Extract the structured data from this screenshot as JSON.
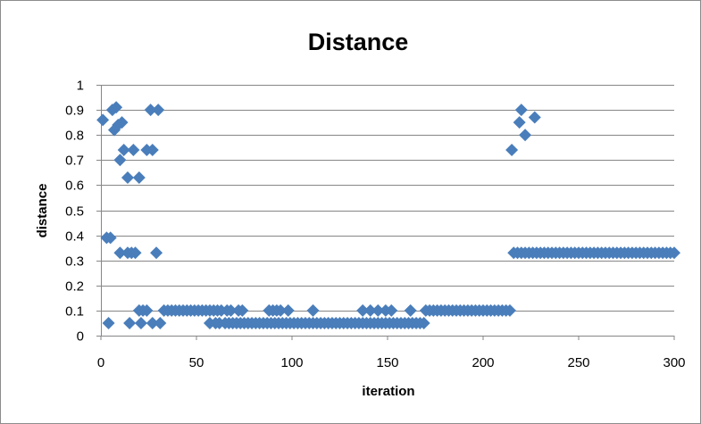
{
  "chart_data": {
    "type": "scatter",
    "title": "Distance",
    "xlabel": "iteration",
    "ylabel": "distance",
    "xlim": [
      0,
      300
    ],
    "ylim": [
      0,
      1
    ],
    "x_ticks": [
      "0",
      "50",
      "100",
      "150",
      "200",
      "250",
      "300"
    ],
    "y_ticks": [
      "0",
      "0.1",
      "0.2",
      "0.3",
      "0.4",
      "0.5",
      "0.6",
      "0.7",
      "0.8",
      "0.9",
      "1"
    ],
    "grid": "horizontal",
    "legend": "none",
    "marker": "diamond",
    "color": "#4a7ebb",
    "series": [
      {
        "points": [
          [
            1,
            0.86
          ],
          [
            3,
            0.39
          ],
          [
            4,
            0.05
          ],
          [
            5,
            0.39
          ],
          [
            6,
            0.9
          ],
          [
            7,
            0.82
          ],
          [
            8,
            0.91
          ],
          [
            9,
            0.84
          ],
          [
            10,
            0.7
          ],
          [
            10,
            0.33
          ],
          [
            11,
            0.85
          ],
          [
            12,
            0.74
          ],
          [
            14,
            0.63
          ],
          [
            14,
            0.33
          ],
          [
            15,
            0.05
          ],
          [
            16,
            0.33
          ],
          [
            17,
            0.74
          ],
          [
            18,
            0.33
          ],
          [
            20,
            0.63
          ],
          [
            20,
            0.1
          ],
          [
            21,
            0.05
          ],
          [
            22,
            0.1
          ],
          [
            24,
            0.74
          ],
          [
            24,
            0.1
          ],
          [
            26,
            0.9
          ],
          [
            27,
            0.74
          ],
          [
            27,
            0.05
          ],
          [
            29,
            0.33
          ],
          [
            30,
            0.9
          ],
          [
            31,
            0.05
          ],
          [
            33,
            0.1
          ],
          [
            35,
            0.1
          ],
          [
            37,
            0.1
          ],
          [
            39,
            0.1
          ],
          [
            41,
            0.1
          ],
          [
            43,
            0.1
          ],
          [
            45,
            0.1
          ],
          [
            47,
            0.1
          ],
          [
            49,
            0.1
          ],
          [
            51,
            0.1
          ],
          [
            53,
            0.1
          ],
          [
            55,
            0.1
          ],
          [
            57,
            0.1
          ],
          [
            57,
            0.05
          ],
          [
            59,
            0.1
          ],
          [
            60,
            0.05
          ],
          [
            61,
            0.1
          ],
          [
            62,
            0.05
          ],
          [
            63,
            0.1
          ],
          [
            65,
            0.05
          ],
          [
            66,
            0.1
          ],
          [
            67,
            0.05
          ],
          [
            68,
            0.1
          ],
          [
            69,
            0.05
          ],
          [
            71,
            0.05
          ],
          [
            72,
            0.1
          ],
          [
            73,
            0.05
          ],
          [
            74,
            0.1
          ],
          [
            75,
            0.05
          ],
          [
            77,
            0.05
          ],
          [
            79,
            0.05
          ],
          [
            81,
            0.05
          ],
          [
            83,
            0.05
          ],
          [
            85,
            0.05
          ],
          [
            87,
            0.05
          ],
          [
            88,
            0.1
          ],
          [
            89,
            0.05
          ],
          [
            90,
            0.1
          ],
          [
            91,
            0.05
          ],
          [
            92,
            0.1
          ],
          [
            93,
            0.05
          ],
          [
            94,
            0.1
          ],
          [
            95,
            0.05
          ],
          [
            97,
            0.05
          ],
          [
            98,
            0.1
          ],
          [
            99,
            0.05
          ],
          [
            101,
            0.05
          ],
          [
            103,
            0.05
          ],
          [
            105,
            0.05
          ],
          [
            107,
            0.05
          ],
          [
            109,
            0.05
          ],
          [
            111,
            0.1
          ],
          [
            111,
            0.05
          ],
          [
            113,
            0.05
          ],
          [
            115,
            0.05
          ],
          [
            117,
            0.05
          ],
          [
            119,
            0.05
          ],
          [
            121,
            0.05
          ],
          [
            123,
            0.05
          ],
          [
            125,
            0.05
          ],
          [
            127,
            0.05
          ],
          [
            129,
            0.05
          ],
          [
            131,
            0.05
          ],
          [
            133,
            0.05
          ],
          [
            135,
            0.05
          ],
          [
            137,
            0.1
          ],
          [
            137,
            0.05
          ],
          [
            139,
            0.05
          ],
          [
            141,
            0.1
          ],
          [
            141,
            0.05
          ],
          [
            143,
            0.05
          ],
          [
            145,
            0.1
          ],
          [
            145,
            0.05
          ],
          [
            147,
            0.05
          ],
          [
            149,
            0.1
          ],
          [
            149,
            0.05
          ],
          [
            151,
            0.05
          ],
          [
            152,
            0.1
          ],
          [
            153,
            0.05
          ],
          [
            155,
            0.05
          ],
          [
            157,
            0.05
          ],
          [
            159,
            0.05
          ],
          [
            161,
            0.05
          ],
          [
            162,
            0.1
          ],
          [
            163,
            0.05
          ],
          [
            165,
            0.05
          ],
          [
            167,
            0.05
          ],
          [
            169,
            0.05
          ],
          [
            170,
            0.1
          ],
          [
            172,
            0.1
          ],
          [
            174,
            0.1
          ],
          [
            176,
            0.1
          ],
          [
            178,
            0.1
          ],
          [
            180,
            0.1
          ],
          [
            182,
            0.1
          ],
          [
            184,
            0.1
          ],
          [
            186,
            0.1
          ],
          [
            188,
            0.1
          ],
          [
            190,
            0.1
          ],
          [
            192,
            0.1
          ],
          [
            194,
            0.1
          ],
          [
            196,
            0.1
          ],
          [
            198,
            0.1
          ],
          [
            200,
            0.1
          ],
          [
            202,
            0.1
          ],
          [
            204,
            0.1
          ],
          [
            206,
            0.1
          ],
          [
            208,
            0.1
          ],
          [
            210,
            0.1
          ],
          [
            212,
            0.1
          ],
          [
            214,
            0.1
          ],
          [
            215,
            0.74
          ],
          [
            216,
            0.33
          ],
          [
            218,
            0.33
          ],
          [
            219,
            0.85
          ],
          [
            220,
            0.9
          ],
          [
            220,
            0.33
          ],
          [
            222,
            0.8
          ],
          [
            222,
            0.33
          ],
          [
            224,
            0.33
          ],
          [
            226,
            0.33
          ],
          [
            227,
            0.87
          ],
          [
            228,
            0.33
          ],
          [
            230,
            0.33
          ],
          [
            232,
            0.33
          ],
          [
            234,
            0.33
          ],
          [
            236,
            0.33
          ],
          [
            238,
            0.33
          ],
          [
            240,
            0.33
          ],
          [
            242,
            0.33
          ],
          [
            244,
            0.33
          ],
          [
            246,
            0.33
          ],
          [
            248,
            0.33
          ],
          [
            250,
            0.33
          ],
          [
            252,
            0.33
          ],
          [
            254,
            0.33
          ],
          [
            256,
            0.33
          ],
          [
            258,
            0.33
          ],
          [
            260,
            0.33
          ],
          [
            262,
            0.33
          ],
          [
            264,
            0.33
          ],
          [
            266,
            0.33
          ],
          [
            268,
            0.33
          ],
          [
            270,
            0.33
          ],
          [
            272,
            0.33
          ],
          [
            274,
            0.33
          ],
          [
            276,
            0.33
          ],
          [
            278,
            0.33
          ],
          [
            280,
            0.33
          ],
          [
            282,
            0.33
          ],
          [
            284,
            0.33
          ],
          [
            286,
            0.33
          ],
          [
            288,
            0.33
          ],
          [
            290,
            0.33
          ],
          [
            292,
            0.33
          ],
          [
            294,
            0.33
          ],
          [
            296,
            0.33
          ],
          [
            298,
            0.33
          ],
          [
            300,
            0.33
          ]
        ]
      }
    ]
  }
}
